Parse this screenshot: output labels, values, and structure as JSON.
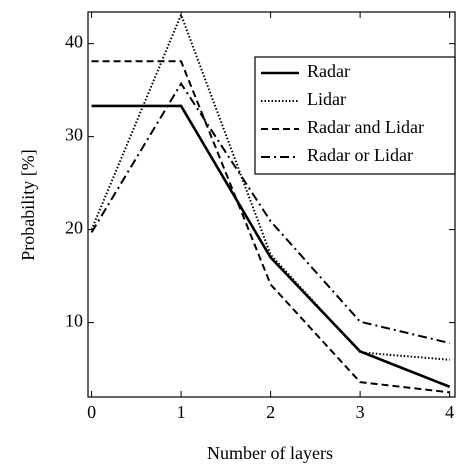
{
  "chart_data": {
    "type": "line",
    "xlabel": "Number of layers",
    "ylabel": "Probability [%]",
    "x": [
      0,
      1,
      2,
      3,
      4
    ],
    "series": [
      {
        "name": "Radar",
        "color": "#000000",
        "dash": "solid",
        "values": [
          33.3,
          33.3,
          17.0,
          6.9,
          3.1
        ]
      },
      {
        "name": "Lidar",
        "color": "#000000",
        "dash": "dotted",
        "values": [
          20.0,
          43.1,
          17.3,
          6.8,
          6.0
        ]
      },
      {
        "name": "Radar and Lidar",
        "color": "#000000",
        "dash": "dashed",
        "values": [
          38.1,
          38.1,
          14.1,
          3.6,
          2.5
        ]
      },
      {
        "name": "Radar or Lidar",
        "color": "#000000",
        "dash": "dashdot",
        "values": [
          19.7,
          35.7,
          20.9,
          10.1,
          7.8
        ]
      }
    ],
    "xlim": [
      -0.04,
      4.06
    ],
    "xticks": [
      0,
      1,
      2,
      3,
      4
    ],
    "ylim": [
      2,
      43.4
    ],
    "yticks": [
      10,
      20,
      30,
      40
    ],
    "grid": false,
    "legend": "upper right"
  }
}
